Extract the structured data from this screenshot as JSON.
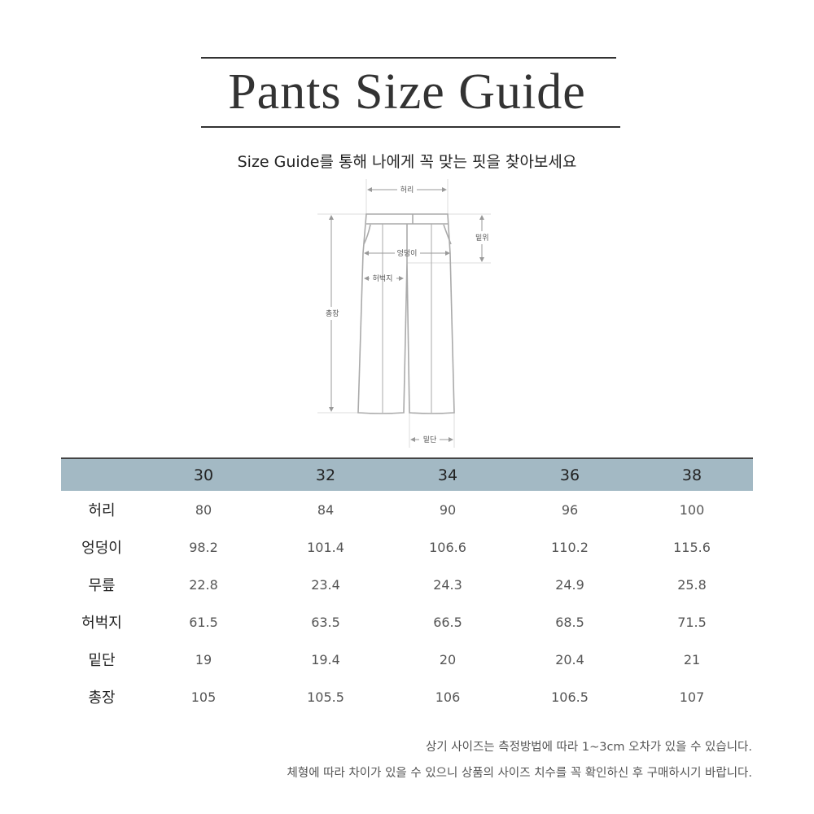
{
  "title": "Pants Size Guide",
  "subtitle": "Size Guide를 통해 나에게 꼭 맞는 핏을 찾아보세요",
  "diagram": {
    "waist": "허리",
    "rise": "밑위",
    "hip": "엉덩이",
    "thigh": "허벅지",
    "length": "총장",
    "hem": "밑단"
  },
  "colors": {
    "header_bg": "#a3b9c4"
  },
  "table": {
    "sizes": [
      "30",
      "32",
      "34",
      "36",
      "38"
    ],
    "rows": [
      {
        "label": "허리",
        "values": [
          "80",
          "84",
          "90",
          "96",
          "100"
        ]
      },
      {
        "label": "엉덩이",
        "values": [
          "98.2",
          "101.4",
          "106.6",
          "110.2",
          "115.6"
        ]
      },
      {
        "label": "무릎",
        "values": [
          "22.8",
          "23.4",
          "24.3",
          "24.9",
          "25.8"
        ]
      },
      {
        "label": "허벅지",
        "values": [
          "61.5",
          "63.5",
          "66.5",
          "68.5",
          "71.5"
        ]
      },
      {
        "label": "밑단",
        "values": [
          "19",
          "19.4",
          "20",
          "20.4",
          "21"
        ]
      },
      {
        "label": "총장",
        "values": [
          "105",
          "105.5",
          "106",
          "106.5",
          "107"
        ]
      }
    ]
  },
  "notes": [
    "상기 사이즈는 측정방법에 따라 1~3cm 오차가 있을 수 있습니다.",
    "체형에 따라 차이가 있을 수 있으니 상품의 사이즈 치수를 꼭 확인하신 후 구매하시기 바랍니다."
  ]
}
